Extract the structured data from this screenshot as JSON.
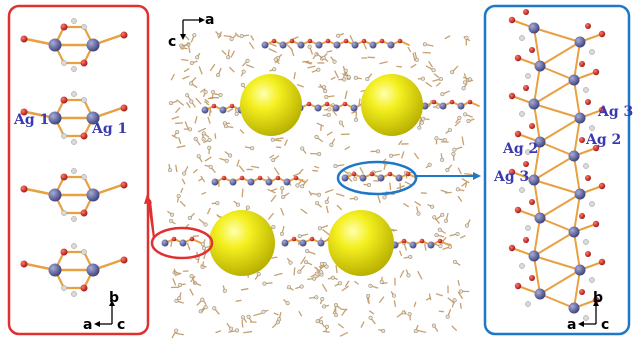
{
  "figure": {
    "left_panel": {
      "labels": [
        "Ag 1",
        "Ag 1"
      ],
      "axes": {
        "up": "b",
        "left": "a",
        "right": "c"
      }
    },
    "center_panel": {
      "axes": {
        "right": "a",
        "down": "c"
      }
    },
    "right_panel": {
      "labels": [
        "Ag 3",
        "Ag 2",
        "Ag 2",
        "Ag 3"
      ],
      "axes": {
        "up": "b",
        "left": "a",
        "right": "c"
      }
    },
    "colors": {
      "left_frame": "#e03030",
      "right_frame": "#1e78c8",
      "silver_atom": "#5a5f9a",
      "oxygen_atom": "#d02020",
      "bond": "#e8a040",
      "sphere": "#f2ee10",
      "label": "#3a3ab0"
    }
  }
}
